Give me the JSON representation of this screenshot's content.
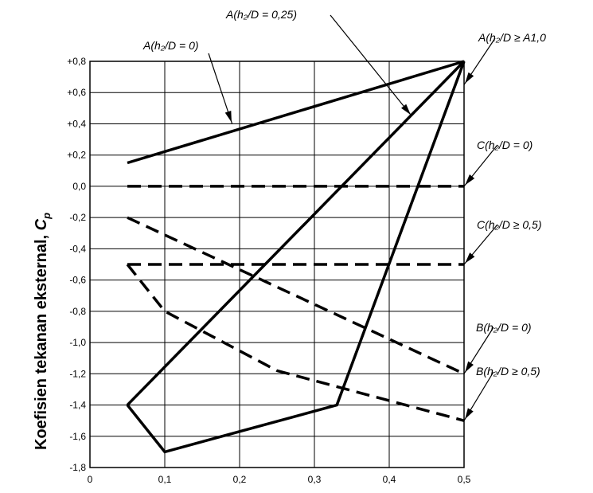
{
  "chart_data": {
    "type": "line",
    "ylabel": "Koefisien tekanan eksternal, ",
    "ylabel_symbol": "C",
    "ylabel_subscript": "p",
    "xlim": [
      0,
      0.5
    ],
    "ylim": [
      -1.8,
      0.8
    ],
    "grid": true,
    "x_ticks": [
      "0",
      "0,1",
      "0,2",
      "0,3",
      "0,4",
      "0,5"
    ],
    "y_ticks": [
      "+0,8",
      "+0,6",
      "+0,4",
      "+0,2",
      "0,0",
      "-0,2",
      "-0,4",
      "-0,6",
      "-0,8",
      "-1,0",
      "-1,2",
      "-1,4",
      "-1,6",
      "-1,8"
    ],
    "series": [
      {
        "name": "A(h₂/D = 0)",
        "style": "solid",
        "x": [
          0.05,
          0.5
        ],
        "y": [
          0.15,
          0.8
        ]
      },
      {
        "name": "A(h₂/D = 0,25)",
        "style": "solid",
        "x": [
          0.05,
          0.5
        ],
        "y": [
          -1.4,
          0.8
        ]
      },
      {
        "name": "A(h₂/D ≥ A1,0",
        "style": "solid",
        "x": [
          0.05,
          0.1,
          0.33,
          0.5
        ],
        "y": [
          -1.4,
          -1.7,
          -1.4,
          0.8
        ]
      },
      {
        "name": "C(h₂/D = 0)",
        "style": "dashed",
        "x": [
          0.05,
          0.5
        ],
        "y": [
          0.0,
          0.0
        ]
      },
      {
        "name": "C(h₂/D ≥ 0,5)",
        "style": "dashed",
        "x": [
          0.05,
          0.5
        ],
        "y": [
          -0.5,
          -0.5
        ]
      },
      {
        "name": "B(h₂/D = 0)",
        "style": "dashed",
        "x": [
          0.05,
          0.5
        ],
        "y": [
          -0.2,
          -1.2
        ]
      },
      {
        "name": "B(h₂/D ≥ 0,5)",
        "style": "dashed",
        "x": [
          0.05,
          0.1,
          0.25,
          0.5
        ],
        "y": [
          -0.5,
          -0.8,
          -1.18,
          -1.5
        ]
      }
    ],
    "annotations": [
      {
        "text": "A(h₂/D = 0)",
        "target": [
          0.19,
          0.4
        ]
      },
      {
        "text": "A(h₂/D = 0,25)",
        "target": [
          0.43,
          0.45
        ]
      },
      {
        "text": "A(h₂/D ≥ A1,0",
        "target": [
          0.5,
          0.65
        ]
      },
      {
        "text": "C(h₂/D = 0)",
        "target": [
          0.5,
          0.0
        ]
      },
      {
        "text": "C(h₂/D ≥ 0,5)",
        "target": [
          0.5,
          -0.5
        ]
      },
      {
        "text": "B(h₂/D = 0)",
        "target": [
          0.5,
          -1.2
        ]
      },
      {
        "text": "B(h₂/D ≥ 0,5)",
        "target": [
          0.5,
          -1.5
        ]
      }
    ]
  }
}
